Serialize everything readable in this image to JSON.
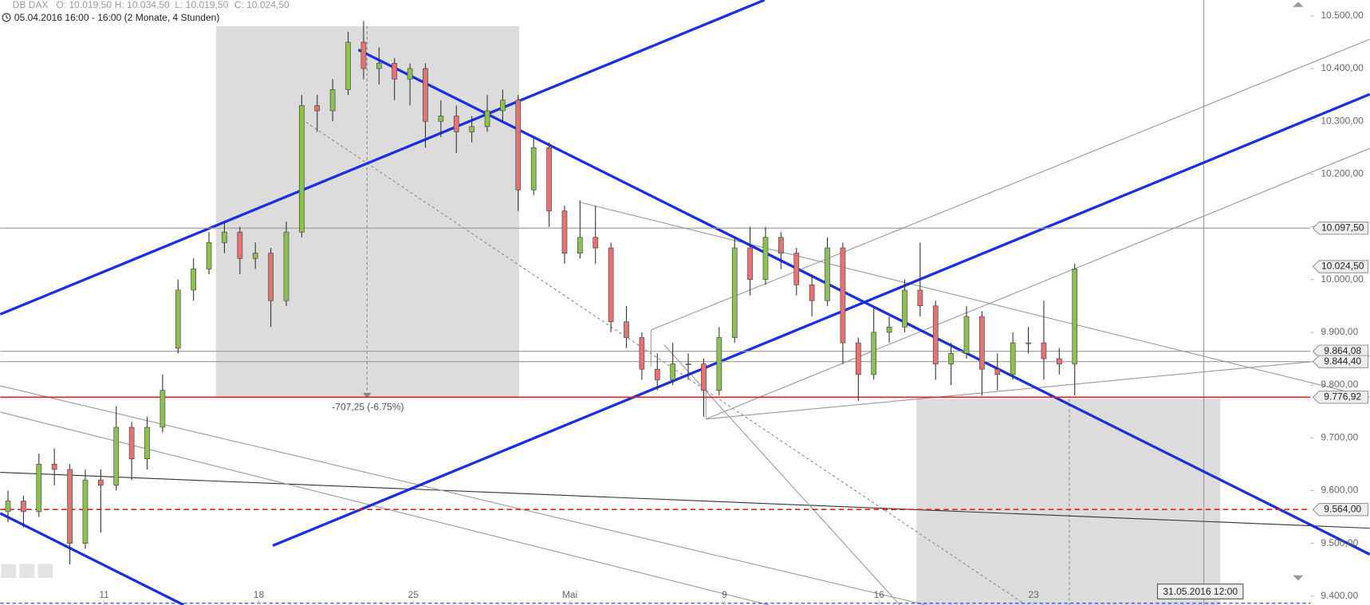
{
  "chart_data": {
    "type": "candlestick",
    "title": "DB DAX",
    "header_values": [
      "O: 10.019,50",
      "H: 10.034,50",
      "L: 10.019,50",
      "C: 10.024,50"
    ],
    "subtitle": "05.04.2016 16:00 - 16:00 (2 Monate, 4 Stunden)",
    "annotation": "-707,25 (-6.75%)",
    "crosshair_label": "31.05.2016 12:00",
    "up_color": "#8cc152",
    "down_color": "#e57373",
    "x": [
      0.25,
      0.75,
      1.25,
      1.75,
      2.25,
      2.75,
      3.25,
      3.75,
      4.25,
      4.75,
      5.25,
      5.75,
      6.25,
      6.75,
      7.25,
      7.75,
      8.25,
      8.75,
      9.25,
      9.75,
      10.25,
      10.75,
      11.25,
      11.75,
      12.25,
      12.75,
      13.25,
      13.75,
      14.25,
      14.75,
      15.25,
      15.75,
      16.25,
      16.75,
      17.25,
      17.75,
      18.25,
      18.75,
      19.25,
      19.75,
      20.25,
      20.75,
      21.25,
      21.75,
      22.25,
      22.75,
      23.25,
      23.75,
      24.25,
      24.75,
      25.25,
      25.75,
      26.25,
      26.75,
      27.25,
      27.75,
      28.25,
      28.75,
      29.25,
      29.75,
      30.25,
      30.75,
      31.25,
      31.75,
      32.25,
      32.75,
      33.25,
      33.75,
      34.25,
      34.75
    ],
    "open": [
      9560,
      9580,
      9560,
      9650,
      9640,
      9500,
      9620,
      9610,
      9720,
      9660,
      9720,
      9870,
      9980,
      10020,
      10070,
      10090,
      10040,
      10050,
      9960,
      10090,
      10330,
      10320,
      10360,
      10450,
      10400,
      10410,
      10380,
      10400,
      10300,
      10310,
      10280,
      10290,
      10320,
      10340,
      10170,
      10250,
      10130,
      10050,
      10080,
      10060,
      9920,
      9890,
      9830,
      9810,
      9840,
      9840,
      9790,
      9890,
      10060,
      10000,
      10080,
      10050,
      9990,
      9960,
      10060,
      9880,
      9820,
      9900,
      9910,
      9980,
      9950,
      9840,
      9860,
      9930,
      9830,
      9820,
      9880,
      9880,
      9850,
      9840
    ],
    "high": [
      9600,
      9590,
      9670,
      9680,
      9650,
      9640,
      9640,
      9760,
      9730,
      9740,
      9820,
      10000,
      10040,
      10090,
      10110,
      10100,
      10070,
      10060,
      10110,
      10350,
      10350,
      10380,
      10470,
      10490,
      10440,
      10420,
      10410,
      10410,
      10340,
      10330,
      10310,
      10350,
      10360,
      10350,
      10270,
      10260,
      10140,
      10150,
      10140,
      10070,
      9950,
      9900,
      9860,
      9880,
      9860,
      9850,
      9910,
      10080,
      10100,
      10100,
      10090,
      10060,
      10010,
      10080,
      10070,
      9890,
      9950,
      9930,
      10000,
      10070,
      9960,
      9880,
      9950,
      9940,
      9860,
      9900,
      9910,
      9960,
      9870,
      10030
    ],
    "low": [
      9540,
      9530,
      9550,
      9610,
      9460,
      9490,
      9520,
      9600,
      9620,
      9640,
      9710,
      9860,
      9960,
      10010,
      10050,
      10010,
      10020,
      9910,
      9950,
      10080,
      10280,
      10300,
      10350,
      10380,
      10370,
      10340,
      10330,
      10250,
      10270,
      10240,
      10260,
      10280,
      10300,
      10130,
      10160,
      10100,
      10030,
      10040,
      10030,
      9900,
      9870,
      9810,
      9790,
      9800,
      9810,
      9740,
      9780,
      9880,
      9970,
      9990,
      10020,
      9970,
      9930,
      9950,
      9840,
      9770,
      9810,
      9880,
      9900,
      9930,
      9810,
      9800,
      9850,
      9780,
      9790,
      9810,
      9860,
      9810,
      9820,
      9780
    ],
    "close": [
      9580,
      9560,
      9650,
      9640,
      9500,
      9620,
      9610,
      9720,
      9660,
      9720,
      9790,
      9980,
      10020,
      10070,
      10090,
      10040,
      10050,
      9960,
      10090,
      10330,
      10320,
      10360,
      10450,
      10400,
      10410,
      10380,
      10400,
      10300,
      10310,
      10280,
      10290,
      10320,
      10340,
      10170,
      10250,
      10130,
      10050,
      10080,
      10060,
      9920,
      9890,
      9830,
      9810,
      9840,
      9840,
      9790,
      9890,
      10060,
      10000,
      10080,
      10050,
      9990,
      9960,
      10060,
      9880,
      9820,
      9900,
      9910,
      9980,
      9950,
      9840,
      9860,
      9930,
      9830,
      9820,
      9880,
      9880,
      9850,
      9840,
      10020
    ],
    "xlim": [
      0,
      42.37
    ],
    "ylim": [
      9383,
      10530
    ],
    "xticks": [
      {
        "value": 3.36,
        "label": "11"
      },
      {
        "value": 8.36,
        "label": "18"
      },
      {
        "value": 13.36,
        "label": "25"
      },
      {
        "value": 18.42,
        "label": "Mai"
      },
      {
        "value": 23.42,
        "label": "9"
      },
      {
        "value": 28.42,
        "label": "16"
      },
      {
        "value": 33.42,
        "label": "23"
      }
    ],
    "yticks": [
      {
        "value": 10500,
        "label": "10.500,00"
      },
      {
        "value": 10400,
        "label": "10.400,00"
      },
      {
        "value": 10300,
        "label": "10.300,00"
      },
      {
        "value": 10200,
        "label": "10.200,00"
      },
      {
        "value": 10100,
        "label": "10.100,00"
      },
      {
        "value": 10000,
        "label": "10.000,00"
      },
      {
        "value": 9900,
        "label": "9.900,00"
      },
      {
        "value": 9800,
        "label": "9.800,00"
      },
      {
        "value": 9700,
        "label": "9.700,00"
      },
      {
        "value": 9600,
        "label": "9.600,00"
      },
      {
        "value": 9500,
        "label": "9.500,00"
      },
      {
        "value": 9400,
        "label": "9.400,00"
      }
    ],
    "levels": [
      {
        "value": 10097.5,
        "label": "10.097,50",
        "color": "#999999",
        "dashed": false,
        "line": true
      },
      {
        "value": 10024.5,
        "label": "10.024,50",
        "color": "#999999",
        "dashed": false,
        "line": false
      },
      {
        "value": 9864.08,
        "label": "9.864,08",
        "color": "#999999",
        "dashed": false,
        "line": true
      },
      {
        "value": 9844.4,
        "label": "9.844,40",
        "color": "#999999",
        "dashed": false,
        "line": true
      },
      {
        "value": 9776.92,
        "label": "9.776,92",
        "color": "#e02020",
        "dashed": false,
        "line": true
      },
      {
        "value": 9564,
        "label": "9.564,00",
        "color": "#e02020",
        "dashed": true,
        "line": true
      }
    ]
  }
}
